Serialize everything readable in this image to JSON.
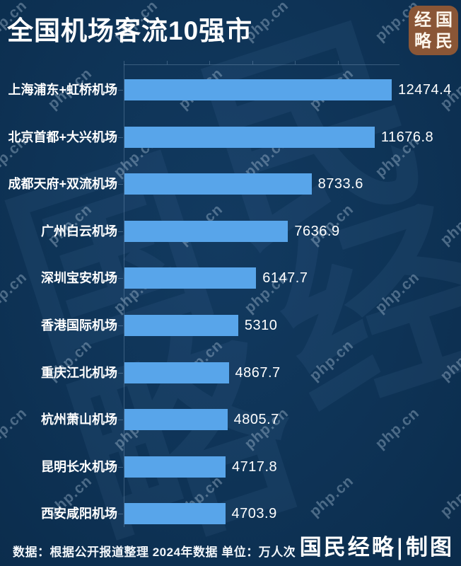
{
  "title": "全国机场客流10强市",
  "seal": {
    "chars": [
      "经",
      "国",
      "略",
      "民"
    ],
    "reading": "国民经略"
  },
  "chart_data": {
    "type": "bar",
    "orientation": "horizontal",
    "title": "全国机场客流10强市",
    "categories": [
      "上海浦东+虹桥机场",
      "北京首都+大兴机场",
      "成都天府+双流机场",
      "广州白云机场",
      "深圳宝安机场",
      "香港国际机场",
      "重庆江北机场",
      "杭州萧山机场",
      "昆明长水机场",
      "西安咸阳机场"
    ],
    "values": [
      12474.4,
      11676.8,
      8733.6,
      7636.9,
      6147.7,
      5310,
      4867.7,
      4805.7,
      4717.8,
      4703.9
    ],
    "value_labels": [
      "12474.4",
      "11676.8",
      "8733.6",
      "7636.9",
      "6147.7",
      "5310",
      "4867.7",
      "4805.7",
      "4717.8",
      "4703.9"
    ],
    "xlim": [
      0,
      12870
    ],
    "tick_interval": 2000,
    "unit": "万人次",
    "bar_color": "#58a5ea",
    "grid": false,
    "legend": "none",
    "axis_position": "top"
  },
  "footer": {
    "note": "数据：根据公开报道整理 2024年数据 单位：万人次",
    "credit": "国民经略|制图"
  },
  "watermark": {
    "text": "php.cn",
    "big_chars": [
      "国",
      "民",
      "经",
      "略"
    ]
  }
}
